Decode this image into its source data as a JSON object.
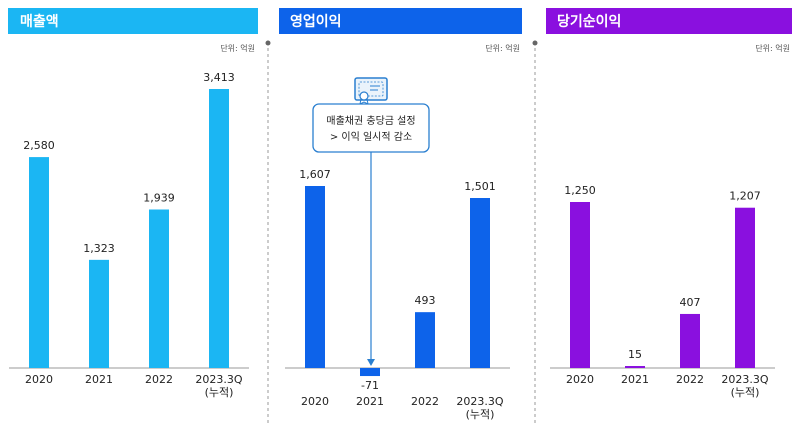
{
  "panels": [
    {
      "title": "매출액",
      "unit": "단위: 억원",
      "color": "#1bb6f3"
    },
    {
      "title": "영업이익",
      "unit": "단위: 억원",
      "color": "#0d63ea",
      "callout": {
        "line1": "매출채권 충당금 설정",
        "line2": "> 이익 일시적 감소",
        "icon": "certificate-icon",
        "border_color": "#2a7fd0"
      }
    },
    {
      "title": "당기순이익",
      "unit": "단위: 억원",
      "color": "#8a10df"
    }
  ],
  "chart_data": [
    {
      "type": "bar",
      "title": "매출액",
      "categories": [
        "2020",
        "2021",
        "2022",
        "2023.3Q\n(누적)"
      ],
      "values": [
        2580,
        1323,
        1939,
        3413
      ],
      "value_labels": [
        "2,580",
        "1,323",
        "1,939",
        "3,413"
      ],
      "unit": "억원"
    },
    {
      "type": "bar",
      "title": "영업이익",
      "categories": [
        "2020",
        "2021",
        "2022",
        "2023.3Q\n(누적)"
      ],
      "values": [
        1607,
        -71,
        493,
        1501
      ],
      "value_labels": [
        "1,607",
        "-71",
        "493",
        "1,501"
      ],
      "unit": "억원"
    },
    {
      "type": "bar",
      "title": "당기순이익",
      "categories": [
        "2020",
        "2021",
        "2022",
        "2023.3Q\n(누적)"
      ],
      "values": [
        1250,
        15,
        407,
        1207
      ],
      "value_labels": [
        "1,250",
        "15",
        "407",
        "1,207"
      ],
      "unit": "억원"
    }
  ]
}
